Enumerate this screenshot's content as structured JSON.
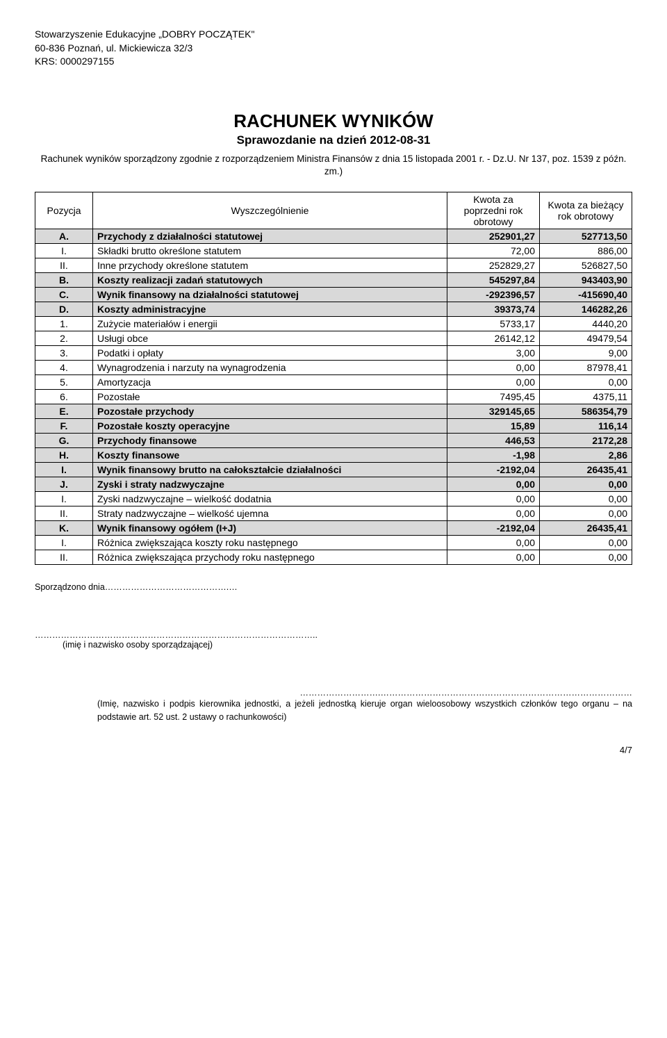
{
  "org": {
    "name": "Stowarzyszenie Edukacyjne „DOBRY POCZĄTEK\"",
    "address": "60-836 Poznań, ul. Mickiewicza 32/3",
    "krs": "KRS: 0000297155"
  },
  "titleBlock": {
    "main": "RACHUNEK WYNIKÓW",
    "sub": "Sprawozdanie na dzień 2012-08-31",
    "legal": "Rachunek wyników sporządzony zgodnie z rozporządzeniem Ministra Finansów  z dnia 15 listopada 2001 r. - Dz.U. Nr 137, poz. 1539 z późn.  zm.)"
  },
  "table": {
    "headers": {
      "pos": "Pozycja",
      "desc": "Wyszczególnienie",
      "prev": "Kwota za poprzedni rok obrotowy",
      "curr": "Kwota za bieżący rok obrotowy"
    },
    "rows": [
      {
        "pos": "A.",
        "desc": "Przychody z działalności statutowej",
        "prev": "252901,27",
        "curr": "527713,50",
        "bold": true,
        "shade": true
      },
      {
        "pos": "I.",
        "desc": "Składki brutto określone statutem",
        "prev": "72,00",
        "curr": "886,00",
        "bold": false,
        "shade": false
      },
      {
        "pos": "II.",
        "desc": "Inne przychody określone statutem",
        "prev": "252829,27",
        "curr": "526827,50",
        "bold": false,
        "shade": false
      },
      {
        "pos": "B.",
        "desc": "Koszty realizacji zadań statutowych",
        "prev": "545297,84",
        "curr": "943403,90",
        "bold": true,
        "shade": true
      },
      {
        "pos": "C.",
        "desc": "Wynik finansowy na działalności statutowej",
        "prev": "-292396,57",
        "curr": "-415690,40",
        "bold": true,
        "shade": true
      },
      {
        "pos": "D.",
        "desc": "Koszty administracyjne",
        "prev": "39373,74",
        "curr": "146282,26",
        "bold": true,
        "shade": true
      },
      {
        "pos": "1.",
        "desc": "Zużycie materiałów i energii",
        "prev": "5733,17",
        "curr": "4440,20",
        "bold": false,
        "shade": false
      },
      {
        "pos": "2.",
        "desc": "Usługi obce",
        "prev": "26142,12",
        "curr": "49479,54",
        "bold": false,
        "shade": false
      },
      {
        "pos": "3.",
        "desc": "Podatki i opłaty",
        "prev": "3,00",
        "curr": "9,00",
        "bold": false,
        "shade": false
      },
      {
        "pos": "4.",
        "desc": "Wynagrodzenia i narzuty na wynagrodzenia",
        "prev": "0,00",
        "curr": "87978,41",
        "bold": false,
        "shade": false
      },
      {
        "pos": "5.",
        "desc": "Amortyzacja",
        "prev": "0,00",
        "curr": "0,00",
        "bold": false,
        "shade": false
      },
      {
        "pos": "6.",
        "desc": "Pozostałe",
        "prev": "7495,45",
        "curr": "4375,11",
        "bold": false,
        "shade": false
      },
      {
        "pos": "E.",
        "desc": "Pozostałe przychody",
        "prev": "329145,65",
        "curr": "586354,79",
        "bold": true,
        "shade": true
      },
      {
        "pos": "F.",
        "desc": "Pozostałe koszty operacyjne",
        "prev": "15,89",
        "curr": "116,14",
        "bold": true,
        "shade": true
      },
      {
        "pos": "G.",
        "desc": "Przychody finansowe",
        "prev": "446,53",
        "curr": "2172,28",
        "bold": true,
        "shade": true
      },
      {
        "pos": "H.",
        "desc": "Koszty finansowe",
        "prev": "-1,98",
        "curr": "2,86",
        "bold": true,
        "shade": true
      },
      {
        "pos": "I.",
        "desc": "Wynik finansowy brutto na całokształcie działalności",
        "prev": "-2192,04",
        "curr": "26435,41",
        "bold": true,
        "shade": true
      },
      {
        "pos": "J.",
        "desc": "Zyski i straty nadzwyczajne",
        "prev": "0,00",
        "curr": "0,00",
        "bold": true,
        "shade": true
      },
      {
        "pos": "I.",
        "desc": "Zyski nadzwyczajne – wielkość dodatnia",
        "prev": "0,00",
        "curr": "0,00",
        "bold": false,
        "shade": false
      },
      {
        "pos": "II.",
        "desc": "Straty nadzwyczajne – wielkość ujemna",
        "prev": "0,00",
        "curr": "0,00",
        "bold": false,
        "shade": false
      },
      {
        "pos": "K.",
        "desc": "Wynik finansowy ogółem (I+J)",
        "prev": "-2192,04",
        "curr": "26435,41",
        "bold": true,
        "shade": true
      },
      {
        "pos": "I.",
        "desc": "Różnica zwiększająca koszty roku następnego",
        "prev": "0,00",
        "curr": "0,00",
        "bold": false,
        "shade": false
      },
      {
        "pos": "II.",
        "desc": "Różnica zwiększająca przychody roku następnego",
        "prev": "0,00",
        "curr": "0,00",
        "bold": false,
        "shade": false
      }
    ]
  },
  "signatures": {
    "dateLine": "Sporządzono dnia…………………………………….…",
    "leftDots": "……………………………………………………………………………………..",
    "leftCaption": "(imię i nazwisko osoby sporządzającej)",
    "rightDots": "……………………….……………………………………………………………………………",
    "rightCaption": "(Imię, nazwisko i podpis kierownika jednostki, a jeżeli jednostką kieruje organ wieloosobowy wszystkich członków tego organu – na podstawie art. 52 ust. 2 ustawy o rachunkowości)"
  },
  "pageNum": "4/7"
}
